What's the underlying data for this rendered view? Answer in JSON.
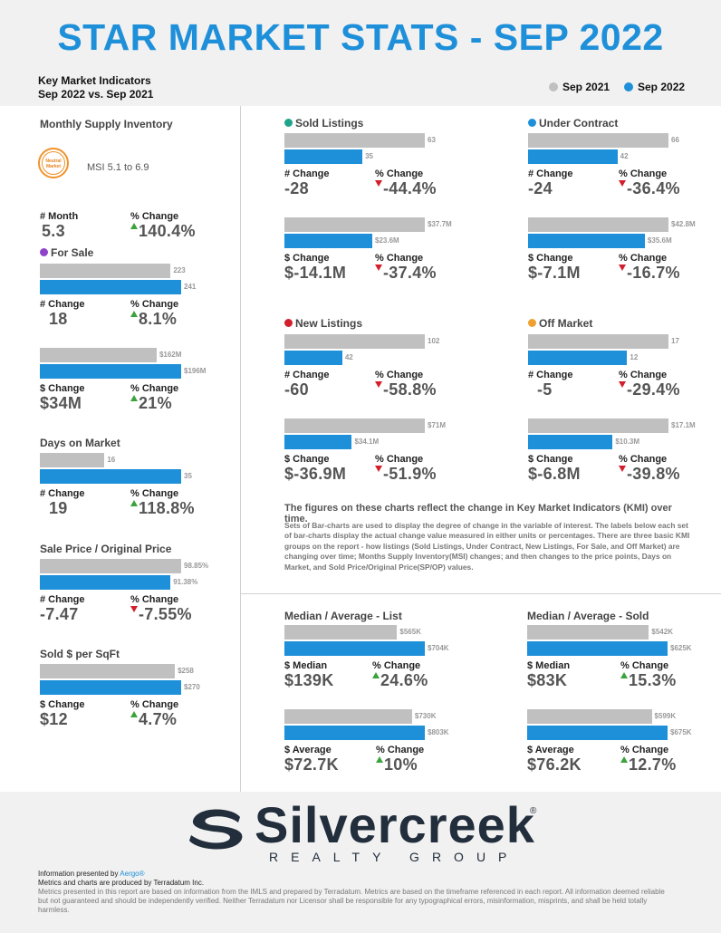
{
  "header": {
    "title": "STAR MARKET STATS - SEP 2022",
    "kmi_line1": "Key Market Indicators",
    "kmi_line2": "Sep 2022 vs. Sep 2021",
    "legend": [
      {
        "label": "Sep 2021",
        "color": "#c0c0c0"
      },
      {
        "label": "Sep 2022",
        "color": "#1e8fd9"
      }
    ]
  },
  "msi": {
    "title": "Monthly Supply Inventory",
    "badge_line1": "Neutral",
    "badge_line2": "Market",
    "range": "MSI 5.1 to 6.9",
    "month_label": "# Month",
    "month_value": "5.3",
    "pct_label": "% Change",
    "pct_value": "140.4%"
  },
  "chart_data": [
    {
      "type": "bar",
      "title": "For Sale",
      "categories": [
        "Sep 2021",
        "Sep 2022"
      ],
      "values": [
        223,
        241
      ],
      "value_labels": [
        "223",
        "241"
      ],
      "change_label": "# Change",
      "change": "18",
      "pct_label": "% Change",
      "pct": "8.1%",
      "direction": "up",
      "dot": "#8e44c9"
    },
    {
      "type": "bar",
      "title": "",
      "categories": [
        "Sep 2021",
        "Sep 2022"
      ],
      "values": [
        162,
        196
      ],
      "value_labels": [
        "$162M",
        "$196M"
      ],
      "change_label": "$ Change",
      "change": "$34M",
      "pct_label": "% Change",
      "pct": "21%",
      "direction": "up"
    },
    {
      "type": "bar",
      "title": "Days on Market",
      "categories": [
        "Sep 2021",
        "Sep 2022"
      ],
      "values": [
        16,
        35
      ],
      "value_labels": [
        "16",
        "35"
      ],
      "change_label": "# Change",
      "change": "19",
      "pct_label": "% Change",
      "pct": "118.8%",
      "direction": "up"
    },
    {
      "type": "bar",
      "title": "Sale Price / Original Price",
      "categories": [
        "Sep 2021",
        "Sep 2022"
      ],
      "values": [
        98.85,
        91.38
      ],
      "value_labels": [
        "98.85%",
        "91.38%"
      ],
      "change_label": "# Change",
      "change": "-7.47",
      "pct_label": "% Change",
      "pct": "-7.55%",
      "direction": "down"
    },
    {
      "type": "bar",
      "title": "Sold $ per SqFt",
      "categories": [
        "Sep 2021",
        "Sep 2022"
      ],
      "values": [
        258,
        270
      ],
      "value_labels": [
        "$258",
        "$270"
      ],
      "change_label": "$ Change",
      "change": "$12",
      "pct_label": "% Change",
      "pct": "4.7%",
      "direction": "up"
    },
    {
      "type": "bar",
      "title": "Sold Listings",
      "categories": [
        "Sep 2021",
        "Sep 2022"
      ],
      "values": [
        63,
        35
      ],
      "value_labels": [
        "63",
        "35"
      ],
      "change_label": "# Change",
      "change": "-28",
      "pct_label": "% Change",
      "pct": "-44.4%",
      "direction": "down",
      "dot": "#1fa38a"
    },
    {
      "type": "bar",
      "title": "",
      "categories": [
        "Sep 2021",
        "Sep 2022"
      ],
      "values": [
        37.7,
        23.6
      ],
      "value_labels": [
        "$37.7M",
        "$23.6M"
      ],
      "change_label": "$ Change",
      "change": "$-14.1M",
      "pct_label": "% Change",
      "pct": "-37.4%",
      "direction": "down"
    },
    {
      "type": "bar",
      "title": "Under Contract",
      "categories": [
        "Sep 2021",
        "Sep 2022"
      ],
      "values": [
        66,
        42
      ],
      "value_labels": [
        "66",
        "42"
      ],
      "change_label": "# Change",
      "change": "-24",
      "pct_label": "% Change",
      "pct": "-36.4%",
      "direction": "down",
      "dot": "#1e8fd9"
    },
    {
      "type": "bar",
      "title": "",
      "categories": [
        "Sep 2021",
        "Sep 2022"
      ],
      "values": [
        42.8,
        35.6
      ],
      "value_labels": [
        "$42.8M",
        "$35.6M"
      ],
      "change_label": "$ Change",
      "change": "$-7.1M",
      "pct_label": "% Change",
      "pct": "-16.7%",
      "direction": "down"
    },
    {
      "type": "bar",
      "title": "New Listings",
      "categories": [
        "Sep 2021",
        "Sep 2022"
      ],
      "values": [
        102,
        42
      ],
      "value_labels": [
        "102",
        "42"
      ],
      "change_label": "# Change",
      "change": "-60",
      "pct_label": "% Change",
      "pct": "-58.8%",
      "direction": "down",
      "dot": "#d21f2b"
    },
    {
      "type": "bar",
      "title": "",
      "categories": [
        "Sep 2021",
        "Sep 2022"
      ],
      "values": [
        71,
        34.1
      ],
      "value_labels": [
        "$71M",
        "$34.1M"
      ],
      "change_label": "$ Change",
      "change": "$-36.9M",
      "pct_label": "% Change",
      "pct": "-51.9%",
      "direction": "down"
    },
    {
      "type": "bar",
      "title": "Off Market",
      "categories": [
        "Sep 2021",
        "Sep 2022"
      ],
      "values": [
        17,
        12
      ],
      "value_labels": [
        "17",
        "12"
      ],
      "change_label": "# Change",
      "change": "-5",
      "pct_label": "% Change",
      "pct": "-29.4%",
      "direction": "down",
      "dot": "#f0a030"
    },
    {
      "type": "bar",
      "title": "",
      "categories": [
        "Sep 2021",
        "Sep 2022"
      ],
      "values": [
        17.1,
        10.3
      ],
      "value_labels": [
        "$17.1M",
        "$10.3M"
      ],
      "change_label": "$ Change",
      "change": "$-6.8M",
      "pct_label": "% Change",
      "pct": "-39.8%",
      "direction": "down"
    },
    {
      "type": "bar",
      "title": "Median / Average - List",
      "categories": [
        "Sep 2021",
        "Sep 2022"
      ],
      "values": [
        565,
        704
      ],
      "value_labels": [
        "$565K",
        "$704K"
      ],
      "change_label": "$ Median",
      "change": "$139K",
      "pct_label": "% Change",
      "pct": "24.6%",
      "direction": "up"
    },
    {
      "type": "bar",
      "title": "",
      "categories": [
        "Sep 2021",
        "Sep 2022"
      ],
      "values": [
        730,
        803
      ],
      "value_labels": [
        "$730K",
        "$803K"
      ],
      "change_label": "$ Average",
      "change": "$72.7K",
      "pct_label": "% Change",
      "pct": "10%",
      "direction": "up"
    },
    {
      "type": "bar",
      "title": "Median / Average - Sold",
      "categories": [
        "Sep 2021",
        "Sep 2022"
      ],
      "values": [
        542,
        625
      ],
      "value_labels": [
        "$542K",
        "$625K"
      ],
      "change_label": "$ Median",
      "change": "$83K",
      "pct_label": "% Change",
      "pct": "15.3%",
      "direction": "up"
    },
    {
      "type": "bar",
      "title": "",
      "categories": [
        "Sep 2021",
        "Sep 2022"
      ],
      "values": [
        599,
        675
      ],
      "value_labels": [
        "$599K",
        "$675K"
      ],
      "change_label": "$ Average",
      "change": "$76.2K",
      "pct_label": "% Change",
      "pct": "12.7%",
      "direction": "up"
    }
  ],
  "note": {
    "title": "The figures on these charts reflect the change in Key Market Indicators (KMI) over time.",
    "body": "Sets of Bar-charts are used to display the degree of change in the variable of interest. The labels below each set of bar-charts display the actual change value measured in either units or percentages. There are three basic KMI groups on the report - how listings (Sold Listings, Under Contract, New Listings, For Sale, and Off Market) are changing over time; Months Supply Inventory(MSI) changes; and then changes to the price points, Days on Market, and Sold Price/Original Price(SP/OP) values."
  },
  "logo": {
    "word": "Silvercreek",
    "sub": "REALTY GROUP",
    "reg": "®"
  },
  "footer": {
    "presented_prefix": "Information presented by ",
    "presented_by": "Aergo®",
    "produced": "Metrics and charts are produced by Terradatum Inc.",
    "disclaimer": "Metrics presented in this report are based on information from the IMLS and prepared by Terradatum. Metrics are based on the timeframe referenced in each report. All information deemed reliable but not guaranteed and should be independently verified. Neither Terradatum nor Licensor shall be responsible for any typographical errors, misinformation, misprints, and shall be held totally harmless."
  }
}
